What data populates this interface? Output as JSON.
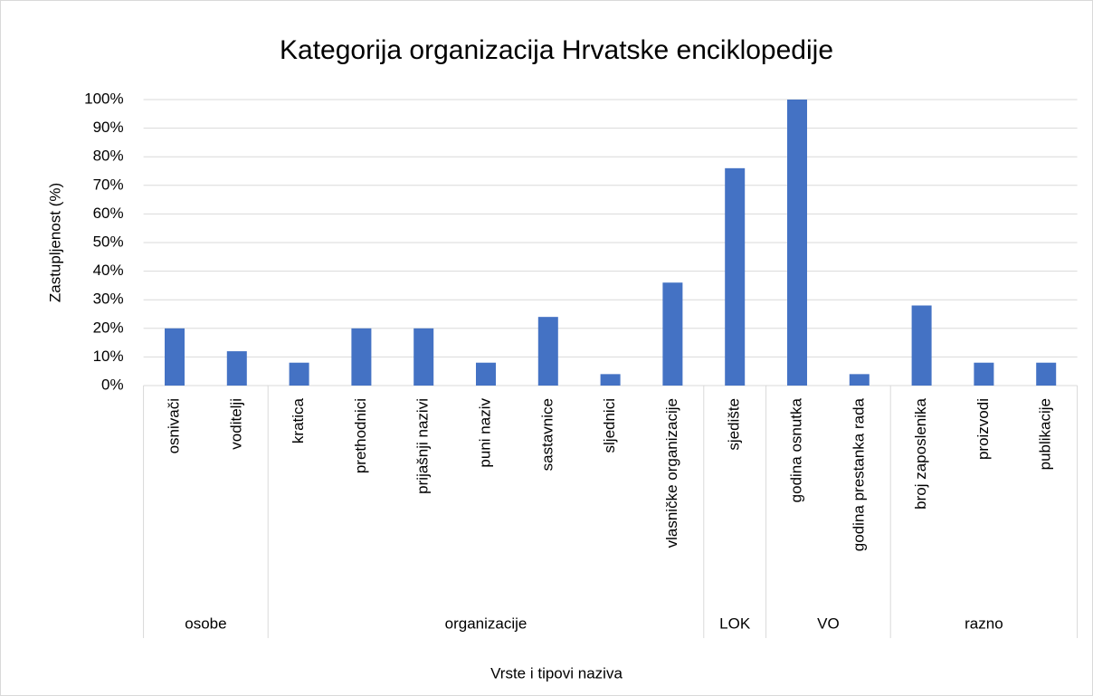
{
  "chart_data": {
    "type": "bar",
    "title": "Kategorija organizacija Hrvatske enciklopedije",
    "x_label": "Vrste i tipovi naziva",
    "y_label": "Zastupljenost (%)",
    "categories": [
      "osnivači",
      "voditelji",
      "kratica",
      "prethodnici",
      "prijašnji nazivi",
      "puni naziv",
      "sastavnice",
      "sljednici",
      "vlasničke organizacije",
      "sjedište",
      "godina osnutka",
      "godina prestanka rada",
      "broj zaposlenika",
      "proizvodi",
      "publikacije"
    ],
    "values": [
      20,
      12,
      8,
      20,
      20,
      8,
      24,
      4,
      36,
      76,
      100,
      4,
      28,
      8,
      8
    ],
    "groups": [
      {
        "label": "osobe",
        "span": 2
      },
      {
        "label": "organizacije",
        "span": 7
      },
      {
        "label": "LOK",
        "span": 1
      },
      {
        "label": "VO",
        "span": 2
      },
      {
        "label": "razno",
        "span": 3
      }
    ],
    "color": "#4472c4",
    "ylim": [
      0,
      100
    ],
    "yticks": [
      {
        "value": 0,
        "label": "0%"
      },
      {
        "value": 10,
        "label": "10%"
      },
      {
        "value": 20,
        "label": "20%"
      },
      {
        "value": 30,
        "label": "30%"
      },
      {
        "value": 40,
        "label": "40%"
      },
      {
        "value": 50,
        "label": "50%"
      },
      {
        "value": 60,
        "label": "60%"
      },
      {
        "value": 70,
        "label": "70%"
      },
      {
        "value": 80,
        "label": "80%"
      },
      {
        "value": 90,
        "label": "90%"
      },
      {
        "value": 100,
        "label": "100%"
      }
    ],
    "grid": true
  }
}
